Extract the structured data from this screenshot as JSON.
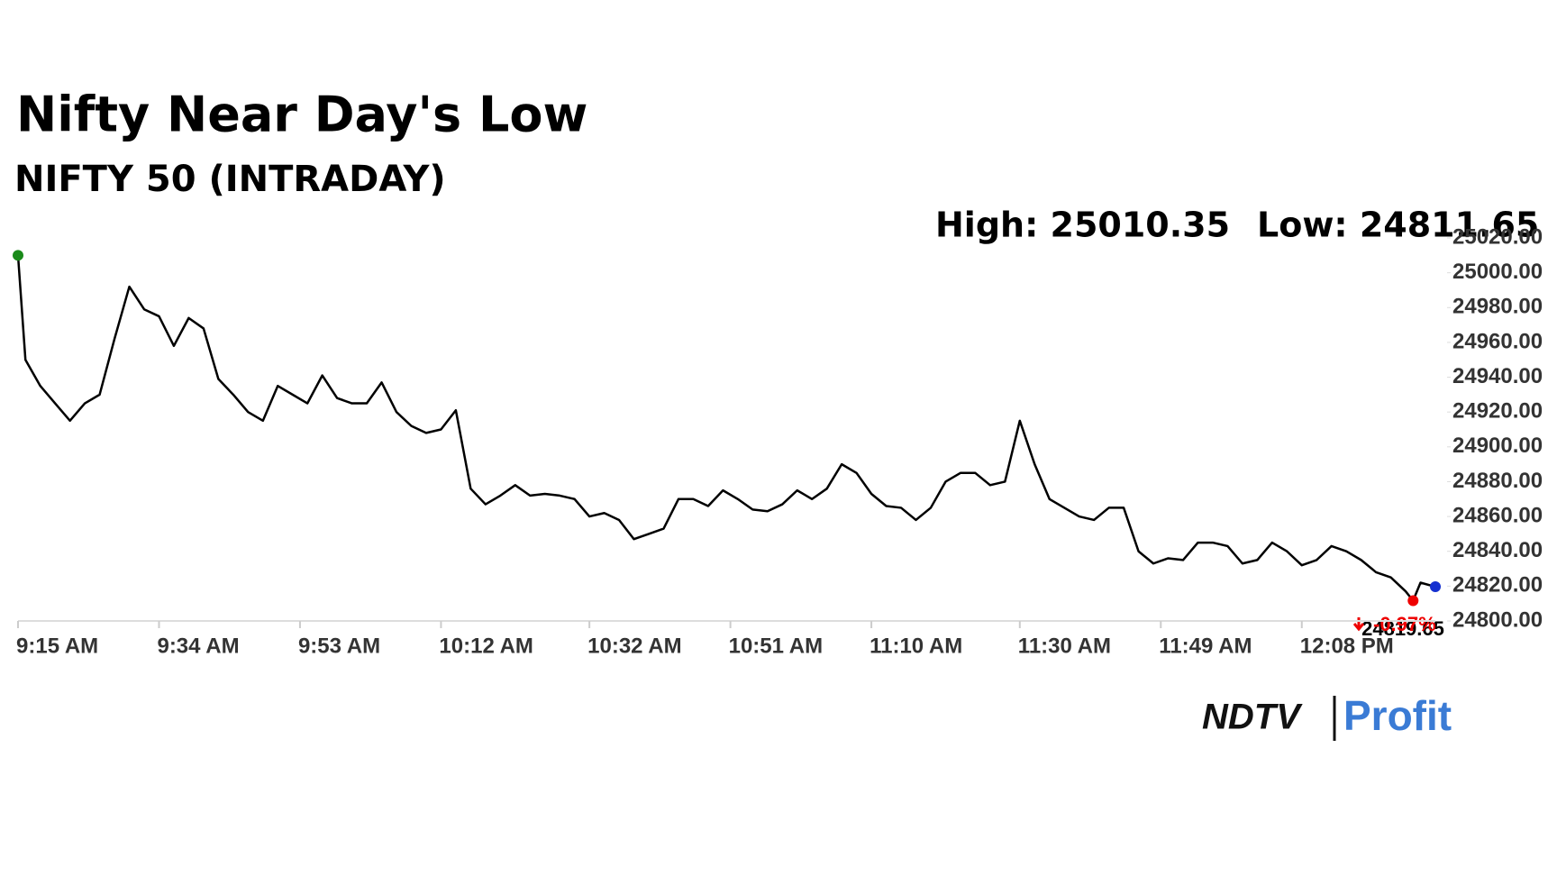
{
  "chart_data": {
    "type": "line",
    "title": "Nifty Near Day's Low",
    "subtitle": "NIFTY 50 (INTRADAY)",
    "annotations": [
      "High: 25010.35",
      "Low: 24811.65",
      "24819.65",
      "-0.97%"
    ],
    "logo": [
      "NDTV",
      "Profit"
    ],
    "x": [
      0,
      1,
      3,
      5,
      7,
      9,
      11,
      13,
      15,
      17,
      19,
      21,
      23,
      25,
      27,
      29,
      31,
      33,
      35,
      37,
      39,
      41,
      43,
      45,
      47,
      49,
      51,
      53,
      55,
      57,
      59,
      61,
      63,
      65,
      67,
      69,
      71,
      73,
      75,
      77,
      79,
      81,
      83,
      85,
      87,
      89,
      91,
      93,
      95,
      97,
      99,
      101,
      103,
      105,
      107,
      109,
      111,
      113,
      115,
      117,
      119,
      121,
      123,
      125,
      127,
      129,
      131,
      133,
      135,
      137,
      139,
      141,
      143,
      145,
      147,
      149,
      151,
      153,
      155,
      157,
      159,
      161,
      163,
      165,
      167,
      169,
      171,
      173,
      175,
      177,
      179,
      181,
      183,
      185,
      187,
      188,
      189,
      191
    ],
    "series": [
      {
        "name": "NIFTY 50",
        "color": "#000000",
        "values": [
          25010,
          24950,
          24935,
          24925,
          24915,
          24925,
          24930,
          24962,
          24992,
          24979,
          24975,
          24958,
          24974,
          24968,
          24939,
          24930,
          24920,
          24915,
          24935,
          24930,
          24925,
          24941,
          24928,
          24925,
          24925,
          24937,
          24920,
          24912,
          24908,
          24910,
          24921,
          24876,
          24867,
          24872,
          24878,
          24872,
          24873,
          24872,
          24870,
          24860,
          24862,
          24858,
          24847,
          24850,
          24853,
          24870,
          24870,
          24866,
          24875,
          24870,
          24864,
          24863,
          24867,
          24875,
          24870,
          24876,
          24890,
          24885,
          24873,
          24866,
          24865,
          24858,
          24865,
          24880,
          24885,
          24885,
          24878,
          24880,
          24915,
          24890,
          24870,
          24865,
          24860,
          24858,
          24865,
          24865,
          24840,
          24833,
          24836,
          24835,
          24845,
          24845,
          24843,
          24833,
          24835,
          24845,
          24840,
          24832,
          24835,
          24843,
          24840,
          24835,
          24828,
          24825,
          24817,
          24811.65,
          24822,
          24819.65
        ]
      }
    ],
    "xlim": [
      0,
      191
    ],
    "xticks": [
      {
        "value": 0,
        "label": "9:15 AM"
      },
      {
        "value": 19,
        "label": "9:34 AM"
      },
      {
        "value": 38,
        "label": "9:53 AM"
      },
      {
        "value": 57,
        "label": "10:12 AM"
      },
      {
        "value": 77,
        "label": "10:32 AM"
      },
      {
        "value": 96,
        "label": "10:51 AM"
      },
      {
        "value": 115,
        "label": "11:10 AM"
      },
      {
        "value": 135,
        "label": "11:30 AM"
      },
      {
        "value": 154,
        "label": "11:49 AM"
      },
      {
        "value": 173,
        "label": "12:08 PM"
      }
    ],
    "ylim": [
      24800,
      25020
    ],
    "yticks": [
      {
        "value": 24800,
        "label": "24800.00"
      },
      {
        "value": 24820,
        "label": "24820.00"
      },
      {
        "value": 24840,
        "label": "24840.00"
      },
      {
        "value": 24860,
        "label": "24860.00"
      },
      {
        "value": 24880,
        "label": "24880.00"
      },
      {
        "value": 24900,
        "label": "24900.00"
      },
      {
        "value": 24920,
        "label": "24920.00"
      },
      {
        "value": 24940,
        "label": "24940.00"
      },
      {
        "value": 24960,
        "label": "24960.00"
      },
      {
        "value": 24980,
        "label": "24980.00"
      },
      {
        "value": 25000,
        "label": "25000.00"
      },
      {
        "value": 25020,
        "label": "25020.00"
      }
    ],
    "grid": false
  }
}
